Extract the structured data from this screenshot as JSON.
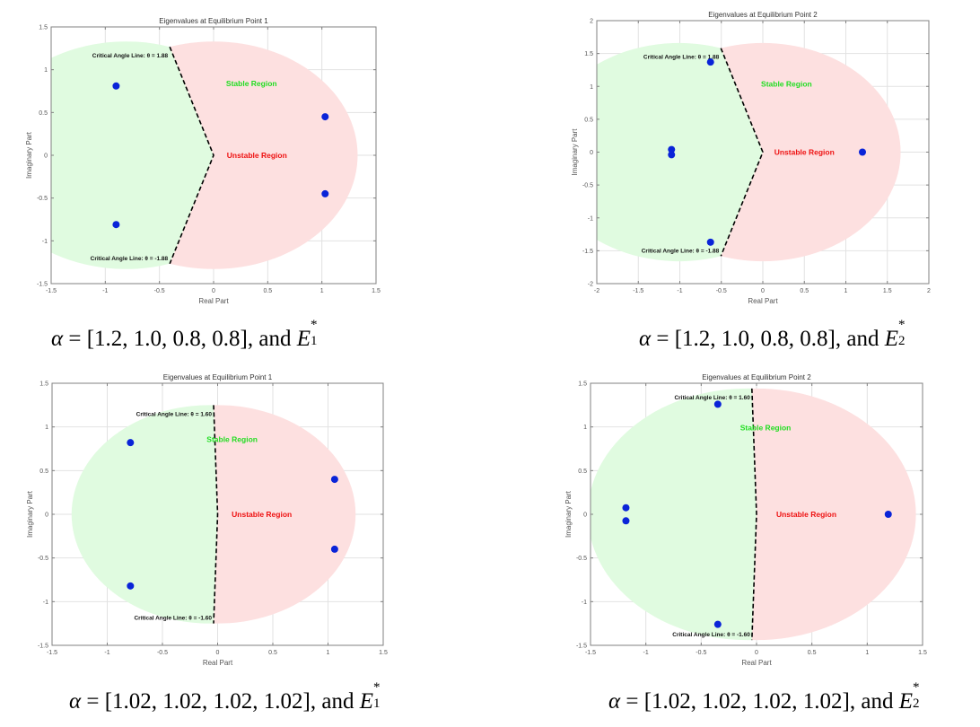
{
  "chart_data": [
    {
      "type": "scatter",
      "title": "Eigenvalues at Equilibrium Point 1",
      "xlabel": "Real Part",
      "ylabel": "Imaginary Part",
      "xlim": [
        -1.5,
        1.5
      ],
      "ylim": [
        -1.5,
        1.5
      ],
      "xticks": [
        -1.5,
        -1,
        -0.5,
        0,
        0.5,
        1,
        1.5
      ],
      "yticks": [
        -1.5,
        -1,
        -0.5,
        0,
        0.5,
        1,
        1.5
      ],
      "grid": true,
      "critical_angle": 1.88,
      "region_radius": [
        1.33,
        1.33
      ],
      "annotations": {
        "upper": "Critical Angle Line: θ = 1.88",
        "lower": "Critical Angle Line: θ = -1.88",
        "stable": "Stable Region",
        "unstable": "Unstable Region"
      },
      "stable_label_at": [
        0.4,
        0.84
      ],
      "unstable_label_at": [
        0.4,
        0.0
      ],
      "points": [
        {
          "re": -0.9,
          "im": 0.81
        },
        {
          "re": -0.9,
          "im": -0.81
        },
        {
          "re": 1.03,
          "im": 0.45
        },
        {
          "re": 1.03,
          "im": -0.45
        }
      ],
      "caption": {
        "alpha": "[1.2, 1.0, 0.8, 0.8]",
        "and": ", and",
        "E": "E",
        "sup": "*",
        "sub": "1"
      }
    },
    {
      "type": "scatter",
      "title": "Eigenvalues at Equilibrium Point 2",
      "xlabel": "Real Part",
      "ylabel": "Imaginary Part",
      "xlim": [
        -2,
        2
      ],
      "ylim": [
        -2,
        2
      ],
      "xticks": [
        -2,
        -1.5,
        -1,
        -0.5,
        0,
        0.5,
        1,
        1.5,
        2
      ],
      "yticks": [
        -2,
        -1.5,
        -1,
        -0.5,
        0,
        0.5,
        1,
        1.5,
        2
      ],
      "grid": true,
      "critical_angle": 1.88,
      "region_radius": [
        1.66,
        1.66
      ],
      "annotations": {
        "upper": "Critical Angle Line: θ = 1.88",
        "lower": "Critical Angle Line: θ = -1.88",
        "stable": "Stable Region",
        "unstable": "Unstable Region"
      },
      "stable_label_at": [
        0.35,
        1.04
      ],
      "unstable_label_at": [
        0.5,
        0.0
      ],
      "points": [
        {
          "re": -0.63,
          "im": 1.37
        },
        {
          "re": -0.63,
          "im": -1.37
        },
        {
          "re": -1.1,
          "im": 0.04
        },
        {
          "re": -1.1,
          "im": -0.04
        },
        {
          "re": 1.2,
          "im": 0.0
        }
      ],
      "caption": {
        "alpha": "[1.2, 1.0, 0.8, 0.8]",
        "and": ", and",
        "E": "E",
        "sup": "*",
        "sub": "2"
      }
    },
    {
      "type": "scatter",
      "title": "Eigenvalues at Equilibrium Point 1",
      "xlabel": "Real Part",
      "ylabel": "Imaginary Part",
      "xlim": [
        -1.5,
        1.5
      ],
      "ylim": [
        -1.5,
        1.5
      ],
      "xticks": [
        -1.5,
        -1,
        -0.5,
        0,
        0.5,
        1,
        1.5
      ],
      "yticks": [
        -1.5,
        -1,
        -0.5,
        0,
        0.5,
        1,
        1.5
      ],
      "grid": true,
      "critical_angle": 1.6,
      "region_radius": [
        1.25,
        1.25
      ],
      "annotations": {
        "upper": "Critical Angle Line: θ = 1.60",
        "lower": "Critical Angle Line: θ = -1.60",
        "stable": "Stable Region",
        "unstable": "Unstable Region"
      },
      "stable_label_at": [
        0.18,
        0.86
      ],
      "unstable_label_at": [
        0.4,
        0.0
      ],
      "points": [
        {
          "re": -0.79,
          "im": 0.82
        },
        {
          "re": -0.79,
          "im": -0.82
        },
        {
          "re": 1.06,
          "im": 0.4
        },
        {
          "re": 1.06,
          "im": -0.4
        }
      ],
      "caption": {
        "alpha": "[1.02, 1.02, 1.02, 1.02]",
        "and": ", and",
        "E": "E",
        "sup": "*",
        "sub": "1"
      }
    },
    {
      "type": "scatter",
      "title": "Eigenvalues at Equilibrium Point 2",
      "xlabel": "Real Part",
      "ylabel": "Imaginary Part",
      "xlim": [
        -1.5,
        1.5
      ],
      "ylim": [
        -1.5,
        1.5
      ],
      "xticks": [
        -1.5,
        -1,
        -0.5,
        0,
        0.5,
        1,
        1.5
      ],
      "yticks": [
        -1.5,
        -1,
        -0.5,
        0,
        0.5,
        1,
        1.5
      ],
      "grid": true,
      "critical_angle": 1.6,
      "region_radius": [
        1.44,
        1.44
      ],
      "annotations": {
        "upper": "Critical Angle Line: θ = 1.60",
        "lower": "Critical Angle Line: θ = -1.60",
        "stable": "Stable Region",
        "unstable": "Unstable Region"
      },
      "stable_label_at": [
        0.13,
        0.99
      ],
      "unstable_label_at": [
        0.45,
        0.0
      ],
      "points": [
        {
          "re": -0.35,
          "im": 1.26
        },
        {
          "re": -0.35,
          "im": -1.26
        },
        {
          "re": -1.18,
          "im": 0.075
        },
        {
          "re": -1.18,
          "im": -0.075
        },
        {
          "re": 1.19,
          "im": 0.0
        }
      ],
      "caption": {
        "alpha": "[1.02, 1.02, 1.02, 1.02]",
        "and": ", and",
        "E": "E",
        "sup": "*",
        "sub": "2"
      }
    }
  ],
  "colors": {
    "stable_fill": "#e0fbe0",
    "unstable_fill": "#fde0e0",
    "stable_text": "#22dd22",
    "unstable_text": "#ee1111",
    "point": "#0a24d8",
    "axis": "#808080",
    "grid": "#e2e2e2",
    "tick_text": "#555555"
  },
  "caption_prefix": "α = "
}
